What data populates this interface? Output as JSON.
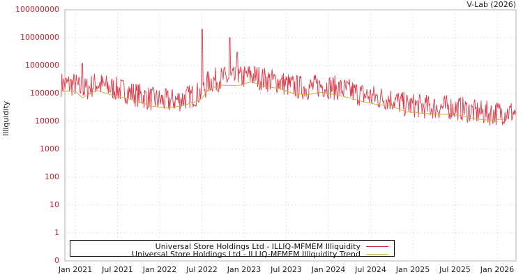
{
  "credit": "V-Lab (2026)",
  "chart_data": {
    "type": "line",
    "title": "",
    "xlabel": "",
    "ylabel": "Illiquidity",
    "yscale": "log",
    "ylim": [
      0,
      100000000
    ],
    "y_ticks": [
      "100000000",
      "10000000",
      "1000000",
      "100000",
      "10000",
      "1000",
      "100",
      "10",
      "1",
      "0"
    ],
    "x_ticks": [
      "Jan 2021",
      "Jul 2021",
      "Jan 2022",
      "Jul 2022",
      "Jan 2023",
      "Jul 2023",
      "Jan 2024",
      "Jul 2024",
      "Jan 2025",
      "Jul 2025",
      "Jan 2026"
    ],
    "grid": true,
    "legend_position": "bottom",
    "series": [
      {
        "name": "Universal Store Holdings Ltd - ILLIQ-MFMEM Illiquidity",
        "color": "#dd2233",
        "x": [
          "2020-11",
          "2021-01",
          "2021-02",
          "2021-03",
          "2021-05",
          "2021-07",
          "2021-09",
          "2021-11",
          "2022-01",
          "2022-03",
          "2022-05",
          "2022-06",
          "2022-07",
          "2022-08",
          "2022-10",
          "2022-11",
          "2022-12",
          "2023-01",
          "2023-03",
          "2023-05",
          "2023-07",
          "2023-09",
          "2023-11",
          "2024-01",
          "2024-03",
          "2024-05",
          "2024-07",
          "2024-09",
          "2024-11",
          "2025-01",
          "2025-03",
          "2025-05",
          "2025-07",
          "2025-09",
          "2025-11",
          "2026-01",
          "2026-02"
        ],
        "values": [
          90000,
          200000,
          1200000,
          120000,
          150000,
          100000,
          60000,
          40000,
          30000,
          80000,
          120000,
          150000,
          20000000,
          250000,
          300000,
          10000000,
          3000000,
          200000,
          150000,
          120000,
          100000,
          150000,
          300000,
          200000,
          120000,
          80000,
          100000,
          60000,
          40000,
          25000,
          20000,
          30000,
          25000,
          20000,
          15000,
          35000,
          25000
        ]
      },
      {
        "name": "Universal Store Holdings Ltd - ILLIQ-MFMEM Illiquidity Trend",
        "color": "#d4aa44",
        "x": [
          "2020-11",
          "2021-01",
          "2021-02",
          "2021-04",
          "2021-06",
          "2021-08",
          "2021-10",
          "2021-12",
          "2022-02",
          "2022-04",
          "2022-06",
          "2022-07",
          "2022-08",
          "2022-10",
          "2022-12",
          "2023-02",
          "2023-04",
          "2023-06",
          "2023-08",
          "2023-10",
          "2023-12",
          "2024-02",
          "2024-04",
          "2024-06",
          "2024-08",
          "2024-10",
          "2024-12",
          "2025-02",
          "2025-04",
          "2025-06",
          "2025-08",
          "2025-10",
          "2025-12",
          "2026-02"
        ],
        "values": [
          120000,
          120000,
          70000,
          130000,
          90000,
          70000,
          50000,
          35000,
          30000,
          35000,
          50000,
          65000,
          150000,
          200000,
          190000,
          260000,
          180000,
          150000,
          100000,
          90000,
          110000,
          90000,
          70000,
          50000,
          40000,
          35000,
          22000,
          20000,
          18000,
          18000,
          16000,
          12000,
          11000,
          12000
        ]
      }
    ]
  },
  "legend": {
    "items": [
      {
        "label": "Universal Store Holdings Ltd - ILLIQ-MFMEM Illiquidity",
        "color": "#dd2233"
      },
      {
        "label": "Universal Store Holdings Ltd - ILLIQ-MFMEM Illiquidity Trend",
        "color": "#d4aa44"
      }
    ]
  }
}
